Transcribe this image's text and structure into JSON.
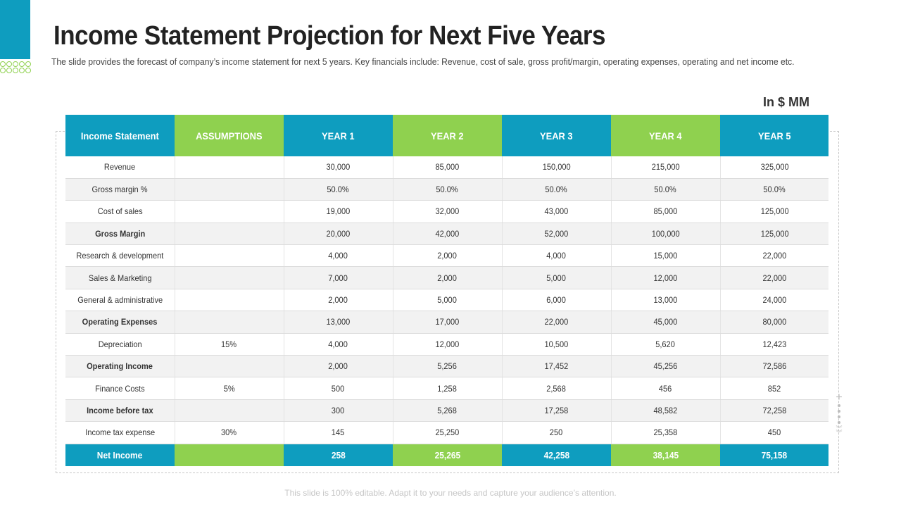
{
  "title": "Income Statement Projection for Next Five Years",
  "subtitle": "The slide provides the forecast of company’s income statement for next 5 years. Key financials include: Revenue, cost of sale, gross profit/margin, operating expenses, operating and net income etc.",
  "unit_label": "In $ MM",
  "colors": {
    "blue": "#0e9dbf",
    "green": "#8fd14f"
  },
  "table": {
    "headers": [
      "Income Statement",
      "ASSUMPTIONS",
      "YEAR 1",
      "YEAR 2",
      "YEAR 3",
      "YEAR 4",
      "YEAR 5"
    ],
    "rows": [
      {
        "label": "Revenue",
        "assumption": "",
        "values": [
          "30,000",
          "85,000",
          "150,000",
          "215,000",
          "325,000"
        ]
      },
      {
        "label": "Gross margin %",
        "assumption": "",
        "values": [
          "50.0%",
          "50.0%",
          "50.0%",
          "50.0%",
          "50.0%"
        ]
      },
      {
        "label": "Cost of sales",
        "assumption": "",
        "values": [
          "19,000",
          "32,000",
          "43,000",
          "85,000",
          "125,000"
        ]
      },
      {
        "label": "Gross Margin",
        "assumption": "",
        "values": [
          "20,000",
          "42,000",
          "52,000",
          "100,000",
          "125,000"
        ]
      },
      {
        "label": "Research & development",
        "assumption": "",
        "values": [
          "4,000",
          "2,000",
          "4,000",
          "15,000",
          "22,000"
        ]
      },
      {
        "label": "Sales & Marketing",
        "assumption": "",
        "values": [
          "7,000",
          "2,000",
          "5,000",
          "12,000",
          "22,000"
        ]
      },
      {
        "label": "General & administrative",
        "assumption": "",
        "values": [
          "2,000",
          "5,000",
          "6,000",
          "13,000",
          "24,000"
        ]
      },
      {
        "label": "Operating Expenses",
        "assumption": "",
        "values": [
          "13,000",
          "17,000",
          "22,000",
          "45,000",
          "80,000"
        ]
      },
      {
        "label": "Depreciation",
        "assumption": "15%",
        "values": [
          "4,000",
          "12,000",
          "10,500",
          "5,620",
          "12,423"
        ]
      },
      {
        "label": "Operating Income",
        "assumption": "",
        "values": [
          "2,000",
          "5,256",
          "17,452",
          "45,256",
          "72,586"
        ]
      },
      {
        "label": "Finance Costs",
        "assumption": "5%",
        "values": [
          "500",
          "1,258",
          "2,568",
          "456",
          "852"
        ]
      },
      {
        "label": "Income before tax",
        "assumption": "",
        "values": [
          "300",
          "5,268",
          "17,258",
          "48,582",
          "72,258"
        ]
      },
      {
        "label": "Income tax expense",
        "assumption": "30%",
        "values": [
          "145",
          "25,250",
          "250",
          "25,358",
          "450"
        ]
      }
    ],
    "net_income": {
      "label": "Net Income",
      "assumption": "",
      "values": [
        "258",
        "25,265",
        "42,258",
        "38,145",
        "75,158"
      ]
    }
  },
  "footer": "This slide is 100% editable. Adapt it to your needs and capture your audience’s attention."
}
